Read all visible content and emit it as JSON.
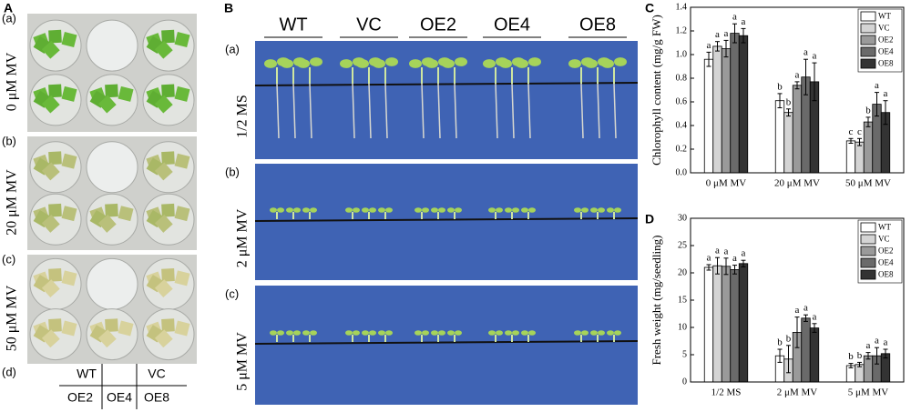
{
  "panel_A": {
    "letter": "A",
    "rows": [
      {
        "tag": "(a)",
        "condition": "0 μM MV"
      },
      {
        "tag": "(b)",
        "condition": "20 μM MV"
      },
      {
        "tag": "(c)",
        "condition": "50 μM MV"
      }
    ],
    "layout": {
      "tag": "(d)",
      "top": [
        "WT",
        "VC"
      ],
      "bottom": [
        "OE2",
        "OE4",
        "OE8"
      ]
    }
  },
  "panel_B": {
    "letter": "B",
    "lines": [
      "WT",
      "VC",
      "OE2",
      "OE4",
      "OE8"
    ],
    "rows": [
      {
        "tag": "(a)",
        "condition": "1/2 MS"
      },
      {
        "tag": "(b)",
        "condition": "2 μM MV"
      },
      {
        "tag": "(c)",
        "condition": "5 μM MV"
      }
    ]
  },
  "chart_data": [
    {
      "type": "bar",
      "panel": "C",
      "y_label": "Chlorophyll content (mg/g FW)",
      "categories": [
        "0 μM MV",
        "20 μM MV",
        "50 μM MV"
      ],
      "series": [
        {
          "name": "WT",
          "color": "#ffffff",
          "values": [
            0.96,
            0.61,
            0.27
          ],
          "errors": [
            0.06,
            0.06,
            0.02
          ],
          "letters": [
            "a",
            "b",
            "c"
          ]
        },
        {
          "name": "VC",
          "color": "#d4d4d4",
          "values": [
            1.07,
            0.51,
            0.26
          ],
          "errors": [
            0.04,
            0.03,
            0.03
          ],
          "letters": [
            "a",
            "b",
            "c"
          ]
        },
        {
          "name": "OE2",
          "color": "#9a9a9a",
          "values": [
            1.05,
            0.74,
            0.43
          ],
          "errors": [
            0.07,
            0.03,
            0.04
          ],
          "letters": [
            "a",
            "a",
            "b"
          ]
        },
        {
          "name": "OE4",
          "color": "#6a6a6a",
          "values": [
            1.18,
            0.81,
            0.58
          ],
          "errors": [
            0.08,
            0.15,
            0.1
          ],
          "letters": [
            "a",
            "a",
            "a"
          ]
        },
        {
          "name": "OE8",
          "color": "#333333",
          "values": [
            1.16,
            0.77,
            0.51
          ],
          "errors": [
            0.06,
            0.16,
            0.1
          ],
          "letters": [
            "a",
            "a",
            "a"
          ]
        }
      ],
      "ylim": [
        0,
        1.4
      ],
      "yticks": [
        {
          "value": 0,
          "label": "0.0"
        },
        0.2,
        0.4,
        0.6,
        0.8,
        {
          "value": 1,
          "label": "1.0"
        },
        1.2,
        1.4
      ],
      "grid": false,
      "legend": "upper right"
    },
    {
      "type": "bar",
      "panel": "D",
      "y_label": "Fresh weight (mg/seedling)",
      "categories": [
        "1/2 MS",
        "2 μM MV",
        "5 μM MV"
      ],
      "series": [
        {
          "name": "WT",
          "color": "#ffffff",
          "values": [
            21.0,
            4.8,
            3.0
          ],
          "errors": [
            0.5,
            1.2,
            0.4
          ],
          "letters": [
            "a",
            "b",
            "b"
          ]
        },
        {
          "name": "VC",
          "color": "#d4d4d4",
          "values": [
            21.3,
            4.2,
            3.2
          ],
          "errors": [
            1.5,
            2.5,
            0.4
          ],
          "letters": [
            "a",
            "b",
            "b"
          ]
        },
        {
          "name": "OE2",
          "color": "#9a9a9a",
          "values": [
            21.2,
            9.1,
            4.8
          ],
          "errors": [
            1.5,
            2.8,
            0.6
          ],
          "letters": [
            "a",
            "a",
            "a"
          ]
        },
        {
          "name": "OE4",
          "color": "#6a6a6a",
          "values": [
            20.6,
            11.7,
            4.8
          ],
          "errors": [
            0.8,
            0.6,
            1.5
          ],
          "letters": [
            "a",
            "a",
            "a"
          ]
        },
        {
          "name": "OE8",
          "color": "#333333",
          "values": [
            21.7,
            9.9,
            5.2
          ],
          "errors": [
            0.6,
            0.8,
            0.8
          ],
          "letters": [
            "a",
            "a",
            "a"
          ]
        }
      ],
      "ylim": [
        0,
        30
      ],
      "yticks": [
        0,
        5,
        10,
        15,
        20,
        25,
        30
      ],
      "grid": false,
      "legend": "upper right"
    }
  ]
}
